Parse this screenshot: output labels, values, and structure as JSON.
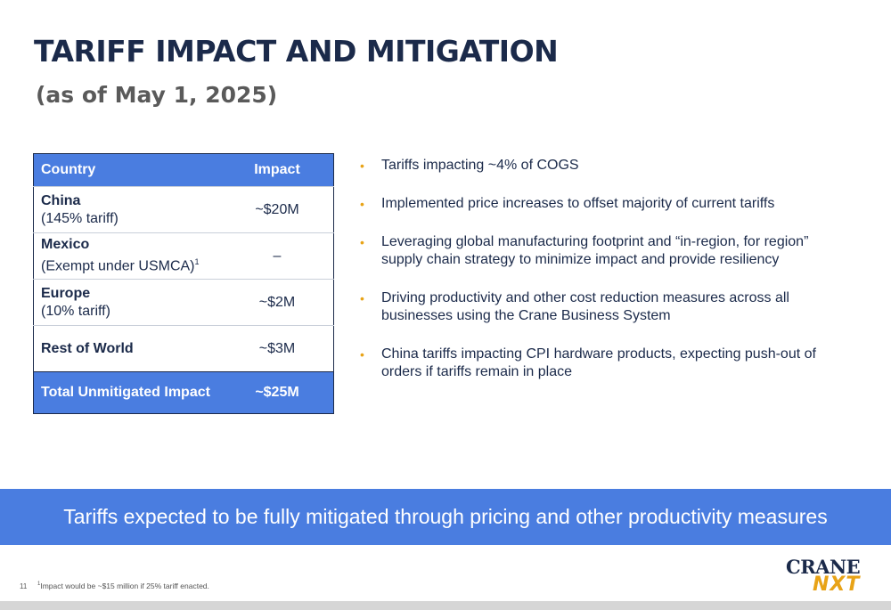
{
  "title": "TARIFF IMPACT AND MITIGATION",
  "subtitle": "(as of May 1, 2025)",
  "table": {
    "headers": {
      "country": "Country",
      "impact": "Impact"
    },
    "rows": [
      {
        "name": "China",
        "note": "(145% tariff)",
        "impact": "~$20M"
      },
      {
        "name": "Mexico",
        "note": "(Exempt under USMCA)",
        "note_sup": "1",
        "impact": "–"
      },
      {
        "name": "Europe",
        "note": "(10% tariff)",
        "impact": "~$2M"
      },
      {
        "name": "Rest of World",
        "note": "",
        "impact": "~$3M"
      }
    ],
    "total": {
      "label": "Total Unmitigated Impact",
      "impact": "~$25M"
    }
  },
  "bullets": [
    "Tariffs impacting ~4% of COGS",
    "Implemented price increases to offset majority of current tariffs",
    "Leveraging global manufacturing footprint and “in-region, for region” supply chain strategy to minimize impact and provide resiliency",
    "Driving productivity and other cost reduction measures across all businesses using the Crane Business System",
    "China tariffs impacting CPI hardware products, expecting push-out of orders if tariffs remain in place"
  ],
  "bullet_glyph": "•",
  "banner": "Tariffs expected to be fully mitigated through pricing and other productivity measures",
  "footnote": {
    "sup": "1",
    "text": "Impact would be ~$15 million if 25% tariff enacted."
  },
  "page_number": "11",
  "logo": {
    "line1": "CRANE",
    "line2": "NXT"
  },
  "colors": {
    "navy": "#1b2a4a",
    "accent_blue": "#4a7de0",
    "gold": "#e8a317"
  }
}
